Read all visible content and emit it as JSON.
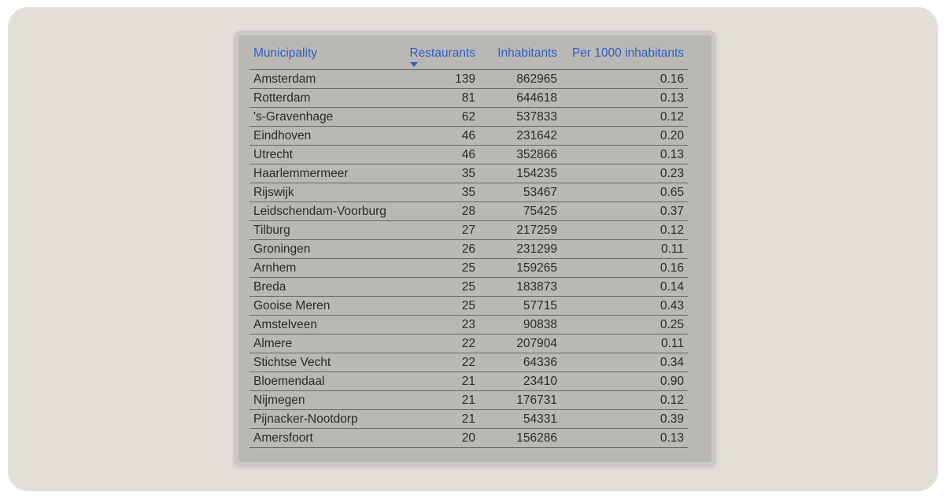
{
  "ui": {
    "page_background": "#e2dfd9",
    "panel_frame_color": "#cbc9c6",
    "panel_background": "#bab8b5",
    "header_text_color": "#2e5ec7",
    "row_text_color": "#2b2a27",
    "separator_color": "#6b6965"
  },
  "chart_data": {
    "type": "table",
    "columns": [
      "Municipality",
      "Restaurants",
      "Inhabitants",
      "Per 1000 inhabitants"
    ],
    "sort": {
      "column": "Restaurants",
      "direction": "descending"
    },
    "rows": [
      [
        "Amsterdam",
        "139",
        "862965",
        "0.16"
      ],
      [
        "Rotterdam",
        "81",
        "644618",
        "0.13"
      ],
      [
        "'s-Gravenhage",
        "62",
        "537833",
        "0.12"
      ],
      [
        "Eindhoven",
        "46",
        "231642",
        "0.20"
      ],
      [
        "Utrecht",
        "46",
        "352866",
        "0.13"
      ],
      [
        "Haarlemmermeer",
        "35",
        "154235",
        "0.23"
      ],
      [
        "Rijswijk",
        "35",
        "53467",
        "0.65"
      ],
      [
        "Leidschendam-Voorburg",
        "28",
        "75425",
        "0.37"
      ],
      [
        "Tilburg",
        "27",
        "217259",
        "0.12"
      ],
      [
        "Groningen",
        "26",
        "231299",
        "0.11"
      ],
      [
        "Arnhem",
        "25",
        "159265",
        "0.16"
      ],
      [
        "Breda",
        "25",
        "183873",
        "0.14"
      ],
      [
        "Gooise Meren",
        "25",
        "57715",
        "0.43"
      ],
      [
        "Amstelveen",
        "23",
        "90838",
        "0.25"
      ],
      [
        "Almere",
        "22",
        "207904",
        "0.11"
      ],
      [
        "Stichtse Vecht",
        "22",
        "64336",
        "0.34"
      ],
      [
        "Bloemendaal",
        "21",
        "23410",
        "0.90"
      ],
      [
        "Nijmegen",
        "21",
        "176731",
        "0.12"
      ],
      [
        "Pijnacker-Nootdorp",
        "21",
        "54331",
        "0.39"
      ],
      [
        "Amersfoort",
        "20",
        "156286",
        "0.13"
      ]
    ]
  }
}
